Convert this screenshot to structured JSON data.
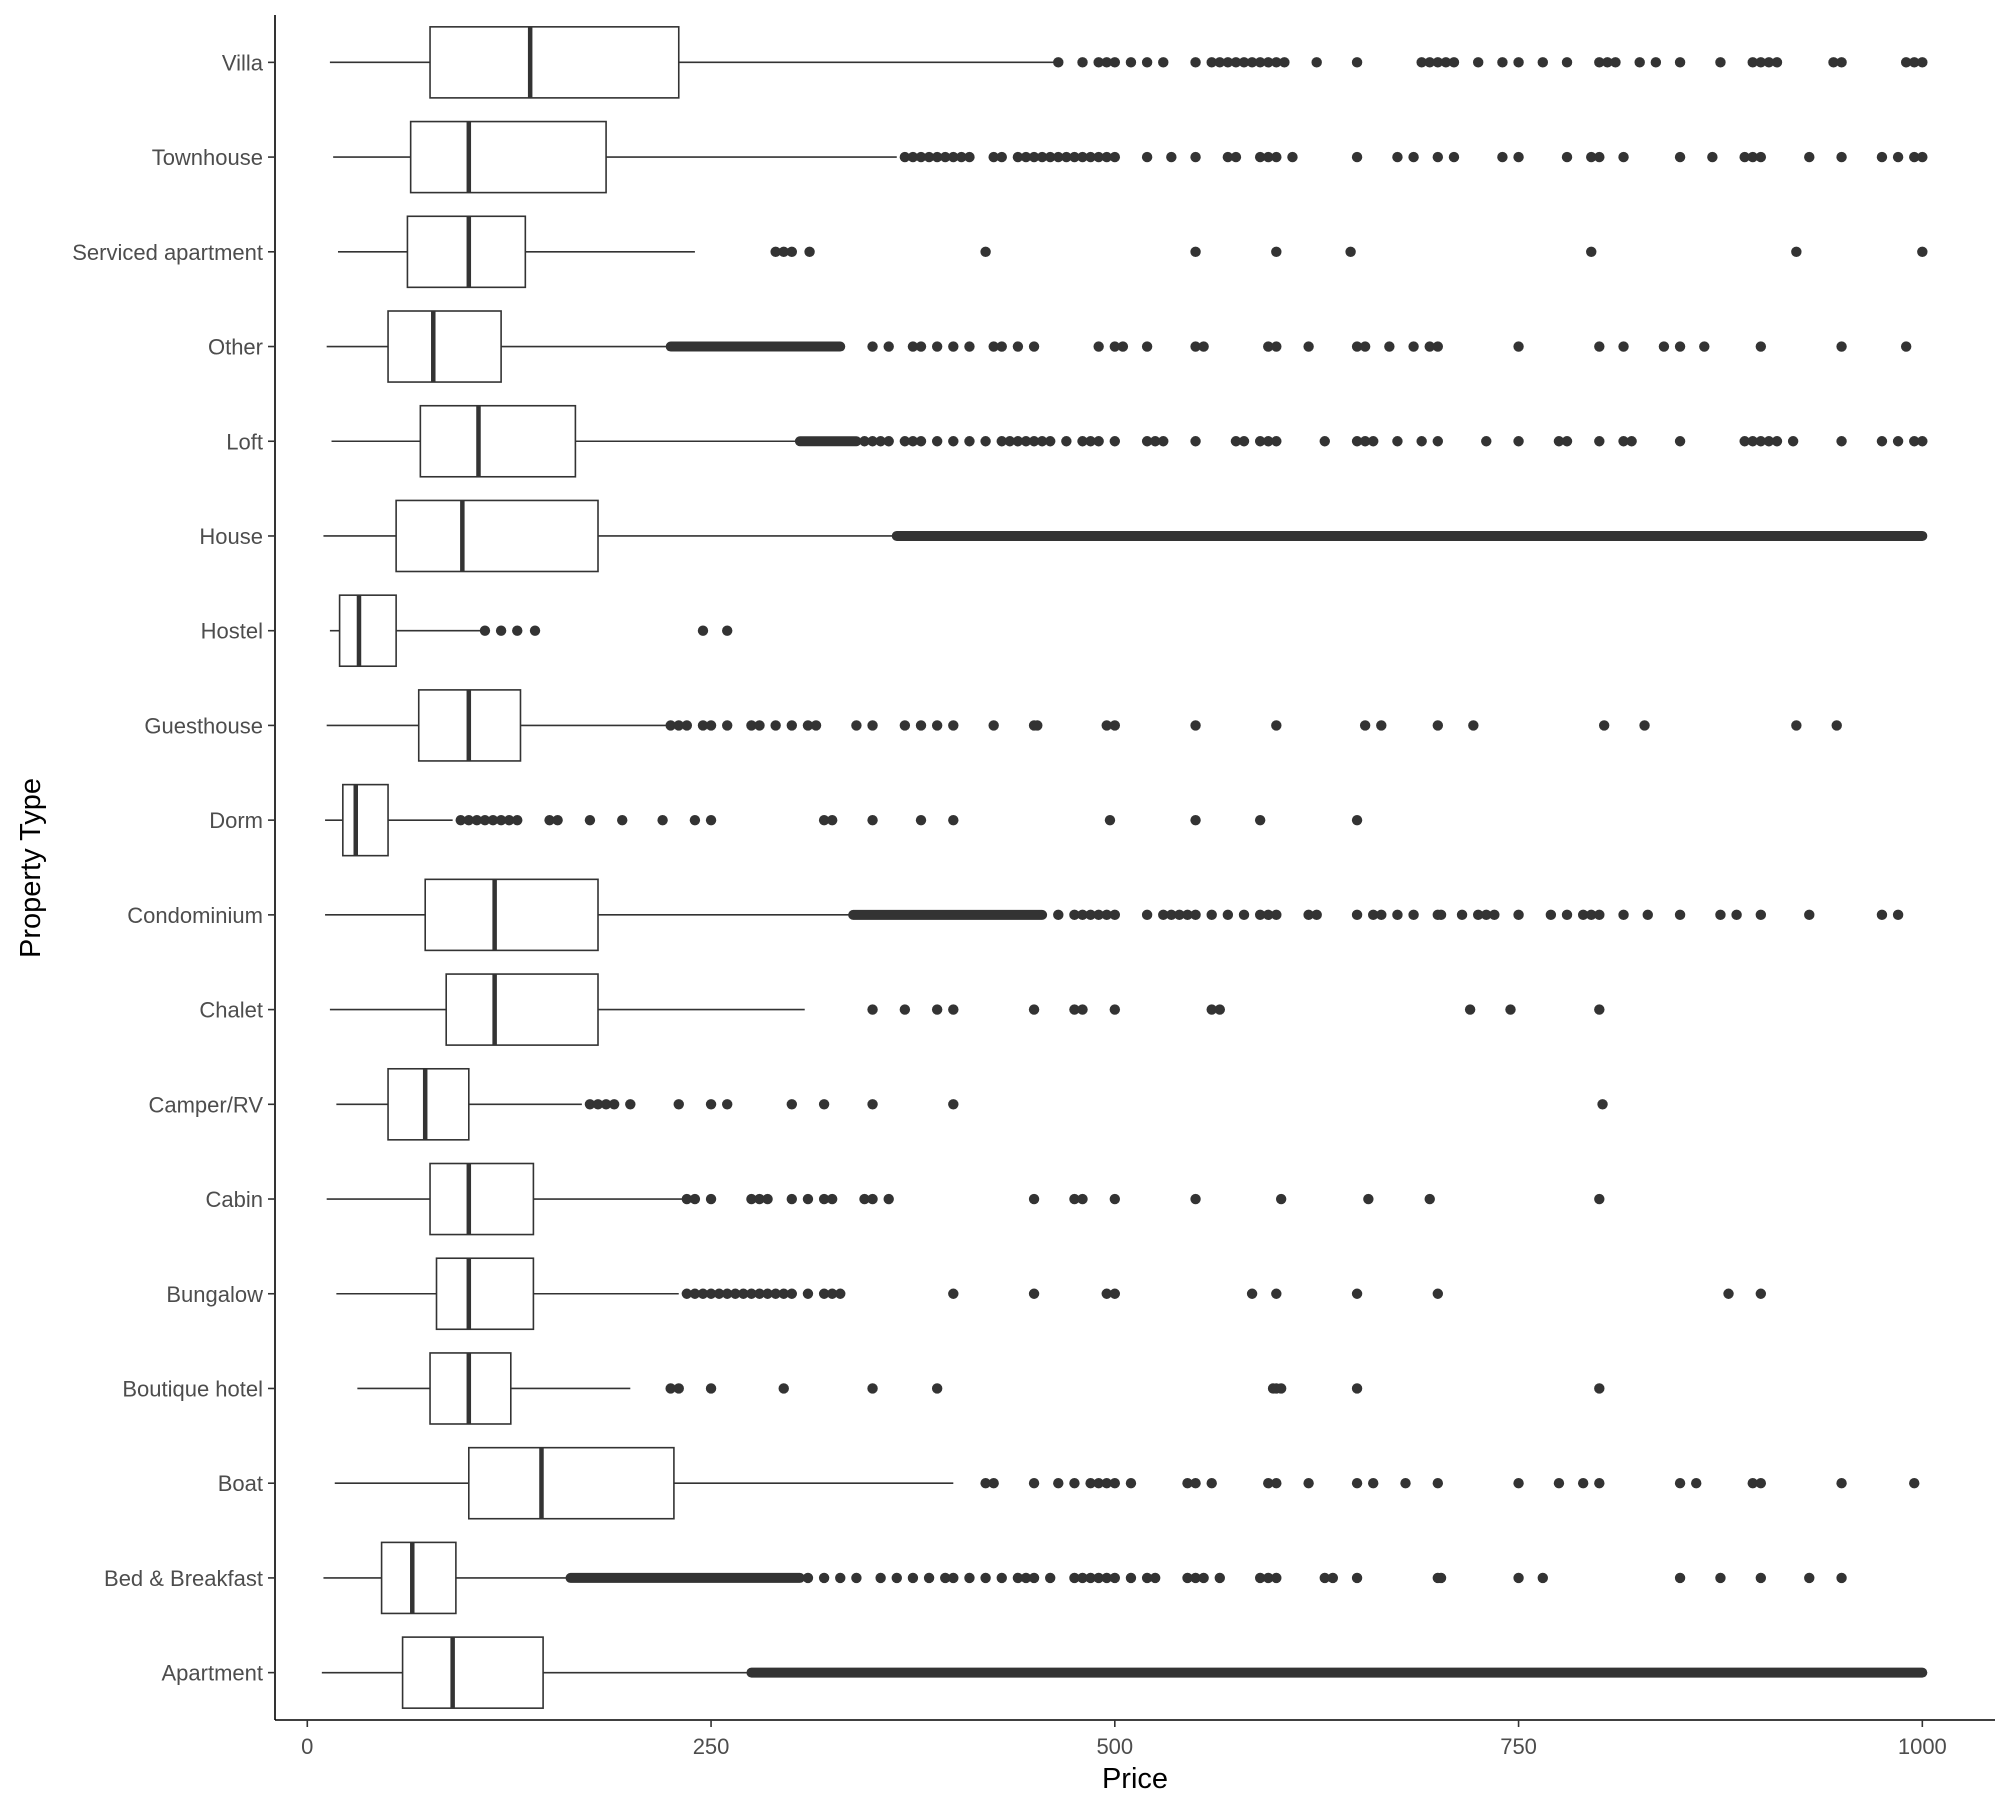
{
  "chart_data": {
    "type": "boxplot",
    "orientation": "horizontal",
    "xlabel": "Price",
    "ylabel": "Property Type",
    "xlim": [
      -20,
      1045
    ],
    "xticks": [
      0,
      250,
      500,
      750,
      1000
    ],
    "grid": false,
    "legend": "none",
    "categories": [
      "Apartment",
      "Bed & Breakfast",
      "Boat",
      "Boutique hotel",
      "Bungalow",
      "Cabin",
      "Camper/RV",
      "Chalet",
      "Condominium",
      "Dorm",
      "Guesthouse",
      "Hostel",
      "House",
      "Loft",
      "Other",
      "Serviced apartment",
      "Townhouse",
      "Villa"
    ],
    "series": [
      {
        "category": "Apartment",
        "whisker_low": 9,
        "q1": 59,
        "median": 90,
        "q3": 146,
        "whisker_high": 275,
        "outliers": [],
        "outlier_band": [
          275,
          1000
        ]
      },
      {
        "category": "Bed & Breakfast",
        "whisker_low": 10,
        "q1": 46,
        "median": 65,
        "q3": 92,
        "whisker_high": 163,
        "outliers": [
          310,
          320,
          330,
          340,
          355,
          365,
          375,
          385,
          395,
          400,
          410,
          420,
          430,
          440,
          445,
          450,
          460,
          475,
          480,
          485,
          490,
          495,
          500,
          510,
          520,
          525,
          545,
          550,
          555,
          565,
          590,
          595,
          600,
          630,
          635,
          650,
          700,
          702,
          750,
          765,
          850,
          875,
          900,
          930,
          950
        ],
        "outlier_band": [
          163,
          305
        ]
      },
      {
        "category": "Boat",
        "whisker_low": 17,
        "q1": 100,
        "median": 145,
        "q3": 227,
        "whisker_high": 400,
        "outliers": [
          420,
          425,
          450,
          465,
          475,
          485,
          490,
          495,
          500,
          510,
          545,
          550,
          560,
          595,
          600,
          620,
          650,
          660,
          680,
          700,
          750,
          775,
          790,
          800,
          850,
          860,
          895,
          900,
          950,
          995
        ]
      },
      {
        "category": "Boutique hotel",
        "whisker_low": 31,
        "q1": 76,
        "median": 100,
        "q3": 126,
        "whisker_high": 200,
        "outliers": [
          225,
          230,
          250,
          295,
          350,
          390,
          598,
          600,
          603,
          650,
          800
        ]
      },
      {
        "category": "Bungalow",
        "whisker_low": 18,
        "q1": 80,
        "median": 100,
        "q3": 140,
        "whisker_high": 230,
        "outliers": [
          235,
          240,
          245,
          250,
          255,
          260,
          265,
          270,
          275,
          280,
          285,
          290,
          295,
          300,
          310,
          320,
          325,
          330,
          400,
          450,
          495,
          500,
          585,
          600,
          650,
          700,
          880,
          900
        ]
      },
      {
        "category": "Cabin",
        "whisker_low": 12,
        "q1": 76,
        "median": 100,
        "q3": 140,
        "whisker_high": 232,
        "outliers": [
          235,
          240,
          250,
          275,
          280,
          285,
          300,
          310,
          320,
          325,
          345,
          350,
          360,
          450,
          475,
          480,
          500,
          550,
          603,
          657,
          695,
          800
        ]
      },
      {
        "category": "Camper/RV",
        "whisker_low": 18,
        "q1": 50,
        "median": 73,
        "q3": 100,
        "whisker_high": 170,
        "outliers": [
          175,
          180,
          185,
          190,
          200,
          230,
          250,
          260,
          300,
          320,
          350,
          400,
          802
        ]
      },
      {
        "category": "Chalet",
        "whisker_low": 14,
        "q1": 86,
        "median": 116,
        "q3": 180,
        "whisker_high": 308,
        "outliers": [
          350,
          370,
          390,
          400,
          450,
          475,
          480,
          500,
          560,
          565,
          720,
          745,
          800
        ]
      },
      {
        "category": "Condominium",
        "whisker_low": 11,
        "q1": 73,
        "median": 116,
        "q3": 180,
        "whisker_high": 338,
        "outliers": [
          465,
          475,
          480,
          485,
          490,
          495,
          500,
          520,
          530,
          535,
          540,
          545,
          550,
          560,
          570,
          580,
          590,
          595,
          600,
          620,
          625,
          650,
          660,
          665,
          675,
          685,
          700,
          702,
          715,
          725,
          730,
          735,
          750,
          770,
          780,
          790,
          795,
          800,
          815,
          830,
          850,
          875,
          885,
          900,
          930,
          975,
          985
        ],
        "outlier_band": [
          338,
          455
        ]
      },
      {
        "category": "Dorm",
        "whisker_low": 11,
        "q1": 22,
        "median": 30,
        "q3": 50,
        "whisker_high": 90,
        "outliers": [
          95,
          100,
          105,
          110,
          115,
          120,
          125,
          130,
          150,
          155,
          175,
          195,
          220,
          240,
          250,
          320,
          325,
          350,
          380,
          400,
          497,
          550,
          590,
          650
        ]
      },
      {
        "category": "Guesthouse",
        "whisker_low": 12,
        "q1": 69,
        "median": 100,
        "q3": 132,
        "whisker_high": 222,
        "outliers": [
          225,
          230,
          235,
          245,
          250,
          260,
          275,
          280,
          290,
          300,
          310,
          315,
          340,
          350,
          370,
          380,
          390,
          400,
          425,
          450,
          452,
          495,
          500,
          550,
          600,
          655,
          665,
          700,
          722,
          803,
          828,
          922,
          947
        ]
      },
      {
        "category": "Hostel",
        "whisker_low": 14,
        "q1": 20,
        "median": 32,
        "q3": 55,
        "whisker_high": 108,
        "outliers": [
          110,
          120,
          130,
          141,
          245,
          260
        ]
      },
      {
        "category": "House",
        "whisker_low": 10,
        "q1": 55,
        "median": 96,
        "q3": 180,
        "whisker_high": 365,
        "outliers": [],
        "outlier_band": [
          365,
          1000
        ]
      },
      {
        "category": "Loft",
        "whisker_low": 15,
        "q1": 70,
        "median": 106,
        "q3": 166,
        "whisker_high": 305,
        "outliers": [
          345,
          350,
          355,
          360,
          370,
          375,
          380,
          390,
          400,
          410,
          420,
          430,
          435,
          440,
          445,
          450,
          455,
          460,
          470,
          480,
          485,
          490,
          500,
          520,
          525,
          530,
          550,
          575,
          580,
          590,
          595,
          600,
          630,
          650,
          655,
          660,
          675,
          690,
          700,
          730,
          750,
          775,
          780,
          800,
          815,
          820,
          850,
          890,
          895,
          900,
          905,
          910,
          920,
          950,
          975,
          985,
          995,
          1000
        ],
        "outlier_band": [
          305,
          340
        ]
      },
      {
        "category": "Other",
        "whisker_low": 12,
        "q1": 50,
        "median": 78,
        "q3": 120,
        "whisker_high": 225,
        "outliers": [
          350,
          360,
          375,
          380,
          390,
          400,
          410,
          425,
          430,
          440,
          450,
          490,
          500,
          505,
          520,
          550,
          555,
          595,
          600,
          620,
          650,
          655,
          670,
          685,
          695,
          700,
          750,
          800,
          815,
          840,
          850,
          865,
          900,
          950,
          990
        ],
        "outlier_band": [
          225,
          330
        ]
      },
      {
        "category": "Serviced apartment",
        "whisker_low": 19,
        "q1": 62,
        "median": 100,
        "q3": 135,
        "whisker_high": 240,
        "outliers": [
          290,
          295,
          300,
          311,
          420,
          550,
          600,
          646,
          795,
          922,
          1000
        ]
      },
      {
        "category": "Townhouse",
        "whisker_low": 16,
        "q1": 64,
        "median": 100,
        "q3": 185,
        "whisker_high": 365,
        "outliers": [
          370,
          375,
          380,
          385,
          390,
          395,
          400,
          405,
          410,
          425,
          430,
          440,
          445,
          450,
          455,
          460,
          465,
          470,
          475,
          480,
          485,
          490,
          495,
          500,
          520,
          535,
          550,
          570,
          575,
          590,
          595,
          600,
          610,
          650,
          675,
          685,
          700,
          710,
          740,
          750,
          780,
          795,
          800,
          815,
          850,
          870,
          890,
          895,
          900,
          930,
          950,
          975,
          985,
          995,
          1000
        ]
      },
      {
        "category": "Villa",
        "whisker_low": 14,
        "q1": 76,
        "median": 138,
        "q3": 230,
        "whisker_high": 465,
        "outliers": [
          465,
          480,
          490,
          495,
          500,
          510,
          520,
          530,
          550,
          560,
          565,
          570,
          575,
          580,
          585,
          590,
          595,
          600,
          605,
          625,
          650,
          690,
          695,
          700,
          705,
          710,
          725,
          740,
          750,
          765,
          780,
          800,
          805,
          810,
          825,
          835,
          850,
          875,
          895,
          900,
          905,
          910,
          945,
          950,
          990,
          995,
          1000
        ]
      }
    ]
  }
}
